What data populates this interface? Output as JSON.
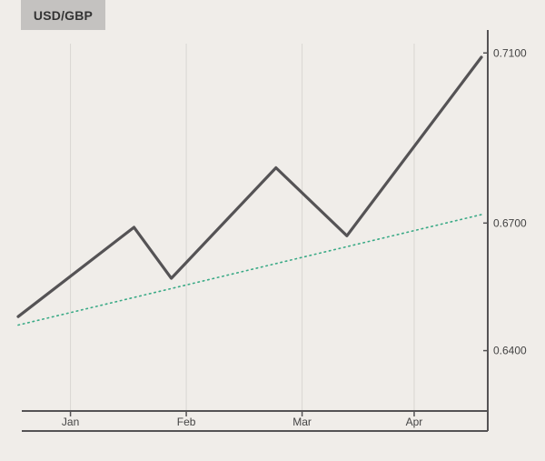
{
  "chart_data": {
    "type": "line",
    "title": "USD/GBP",
    "x_ticks": [
      "Jan",
      "Feb",
      "Mar",
      "Apr"
    ],
    "y_ticks": [
      "0.6400",
      "0.6700",
      "0.7100"
    ],
    "ylim": [
      0.6258,
      0.7154
    ],
    "grid": "vertical",
    "series": [
      {
        "style": "solid",
        "color": "#555355",
        "points": [
          {
            "x": "2021-12-27",
            "y": 0.648
          },
          {
            "x": "2022-01-27",
            "y": 0.669
          },
          {
            "x": "2022-02-06",
            "y": 0.657
          },
          {
            "x": "2022-03-06",
            "y": 0.683
          },
          {
            "x": "2022-03-25",
            "y": 0.667
          },
          {
            "x": "2022-04-30",
            "y": 0.709
          }
        ]
      },
      {
        "style": "dotted",
        "color": "#3aaa86",
        "points": [
          {
            "x": "2021-12-27",
            "y": 0.646
          },
          {
            "x": "2022-04-30",
            "y": 0.672
          }
        ]
      }
    ]
  }
}
